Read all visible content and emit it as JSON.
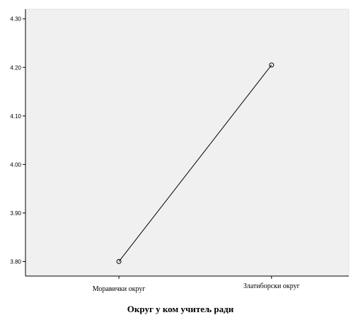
{
  "chart_data": {
    "type": "line",
    "categories": [
      "Моравички округ",
      "Златиборски округ"
    ],
    "series": [
      {
        "values": [
          3.8,
          4.205
        ]
      }
    ],
    "xlabel": "Округ у ком учитељ ради",
    "ylabel": "",
    "title": "",
    "ylim": [
      3.77,
      4.32
    ],
    "yticks": [
      "3.80",
      "3.90",
      "4.00",
      "4.10",
      "4.20",
      "4.30"
    ],
    "ytick_values": [
      3.8,
      3.9,
      4.0,
      4.1,
      4.2,
      4.3
    ],
    "grid": false,
    "marker": "open-circle",
    "colors": {
      "plot_bg": "#f0f0f0",
      "line": "#000000",
      "axis": "#000000"
    }
  }
}
